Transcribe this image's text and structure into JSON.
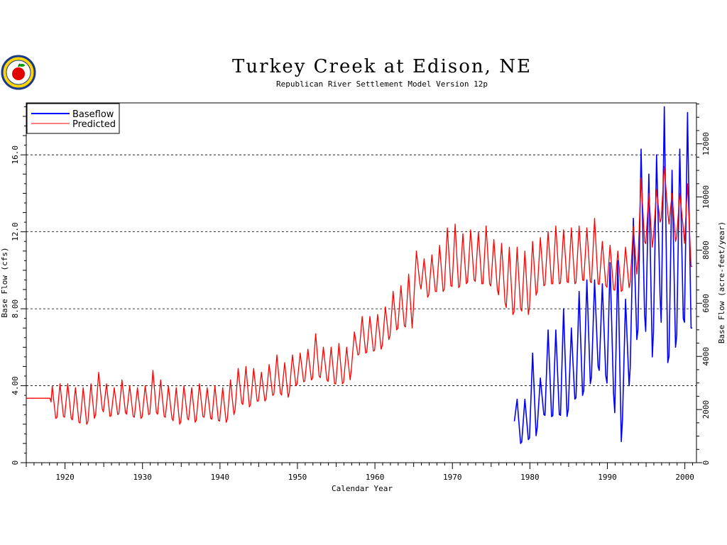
{
  "chart_data": {
    "type": "line",
    "title": "Turkey Creek at Edison, NE",
    "subtitle": "Republican River Settlement Model Version 12p",
    "xlabel": "Calendar Year",
    "ylabel": "Base Flow (cfs)",
    "ylabel_right": "Base Flow (acre-feet/year)",
    "xlim": [
      1915,
      2001.5
    ],
    "ylim": [
      0,
      18.7
    ],
    "ylim_right": [
      0,
      13540
    ],
    "xticks": [
      1920,
      1930,
      1940,
      1950,
      1960,
      1970,
      1980,
      1990,
      2000
    ],
    "yticks": [
      0,
      4,
      8,
      12,
      16
    ],
    "ytick_labels": [
      "0",
      "4.00",
      "8.00",
      "12.0",
      "16.0"
    ],
    "yticks_right": [
      0,
      2000,
      4000,
      6000,
      8000,
      10000,
      12000
    ],
    "grid_y": [
      4,
      8,
      12,
      16
    ],
    "legend_position": "top-left",
    "series": [
      {
        "name": "Baseflow",
        "color": "#0000ff",
        "x_start": 1978.0,
        "annual": [
          [
            1978,
            3.3,
            1.0
          ],
          [
            1979,
            3.3,
            1.2
          ],
          [
            1980,
            5.7,
            1.4
          ],
          [
            1981,
            4.4,
            2.5
          ],
          [
            1982,
            6.9,
            2.4
          ],
          [
            1983,
            6.9,
            2.5
          ],
          [
            1984,
            8.0,
            2.4
          ],
          [
            1985,
            7.0,
            3.3
          ],
          [
            1986,
            8.9,
            3.5
          ],
          [
            1987,
            9.5,
            4.1
          ],
          [
            1988,
            9.5,
            5.0
          ],
          [
            1989,
            9.3,
            4.5
          ],
          [
            1990,
            10.4,
            3.6
          ],
          [
            1991,
            10.5,
            1.1
          ],
          [
            1992,
            8.5,
            4.0
          ],
          [
            1993,
            12.7,
            6.4
          ],
          [
            1994,
            16.3,
            7.7
          ],
          [
            1995,
            15.0,
            5.5
          ],
          [
            1996,
            16.0,
            8.7
          ],
          [
            1997,
            18.5,
            5.2
          ],
          [
            1998,
            15.2,
            6.0
          ],
          [
            1999,
            16.3,
            7.5
          ],
          [
            2000,
            18.2,
            7.0
          ]
        ]
      },
      {
        "name": "Predicted",
        "color": "#ff0000",
        "x_start": 1918.2,
        "pre_value": 3.35,
        "annual": [
          [
            1918,
            4.0,
            2.3
          ],
          [
            1919,
            4.1,
            2.4
          ],
          [
            1920,
            4.1,
            2.3
          ],
          [
            1921,
            3.9,
            2.1
          ],
          [
            1922,
            3.9,
            2.0
          ],
          [
            1923,
            4.1,
            2.3
          ],
          [
            1924,
            4.7,
            2.8
          ],
          [
            1925,
            4.1,
            2.4
          ],
          [
            1926,
            3.9,
            2.5
          ],
          [
            1927,
            4.3,
            2.6
          ],
          [
            1928,
            4.0,
            2.4
          ],
          [
            1929,
            3.9,
            2.3
          ],
          [
            1930,
            4.0,
            2.5
          ],
          [
            1931,
            4.8,
            2.6
          ],
          [
            1932,
            4.3,
            2.4
          ],
          [
            1933,
            4.0,
            2.3
          ],
          [
            1934,
            3.9,
            2.0
          ],
          [
            1935,
            4.0,
            2.3
          ],
          [
            1936,
            3.9,
            2.1
          ],
          [
            1937,
            4.1,
            2.4
          ],
          [
            1938,
            3.9,
            2.3
          ],
          [
            1939,
            4.0,
            2.2
          ],
          [
            1940,
            3.9,
            2.1
          ],
          [
            1941,
            4.3,
            2.5
          ],
          [
            1942,
            4.9,
            3.1
          ],
          [
            1943,
            5.0,
            2.9
          ],
          [
            1944,
            4.9,
            3.2
          ],
          [
            1945,
            4.7,
            3.2
          ],
          [
            1946,
            5.1,
            3.5
          ],
          [
            1947,
            5.6,
            3.6
          ],
          [
            1948,
            5.2,
            3.4
          ],
          [
            1949,
            5.6,
            4.0
          ],
          [
            1950,
            5.7,
            4.2
          ],
          [
            1951,
            5.9,
            4.3
          ],
          [
            1952,
            6.7,
            4.5
          ],
          [
            1953,
            6.0,
            4.3
          ],
          [
            1954,
            6.0,
            4.1
          ],
          [
            1955,
            6.2,
            4.1
          ],
          [
            1956,
            6.0,
            4.3
          ],
          [
            1957,
            6.8,
            5.6
          ],
          [
            1958,
            7.6,
            5.7
          ],
          [
            1959,
            7.6,
            5.8
          ],
          [
            1960,
            7.7,
            5.9
          ],
          [
            1961,
            8.1,
            6.4
          ],
          [
            1962,
            8.9,
            6.9
          ],
          [
            1963,
            9.2,
            7.1
          ],
          [
            1964,
            9.8,
            7.0
          ],
          [
            1965,
            11.0,
            9.3
          ],
          [
            1966,
            10.6,
            8.6
          ],
          [
            1967,
            10.8,
            8.9
          ],
          [
            1968,
            11.3,
            8.9
          ],
          [
            1969,
            12.2,
            9.2
          ],
          [
            1970,
            12.4,
            9.1
          ],
          [
            1971,
            11.9,
            9.3
          ],
          [
            1972,
            12.1,
            9.5
          ],
          [
            1973,
            12.0,
            9.3
          ],
          [
            1974,
            12.3,
            9.3
          ],
          [
            1975,
            11.6,
            9.0
          ],
          [
            1976,
            11.4,
            8.3
          ],
          [
            1977,
            11.2,
            7.7
          ],
          [
            1978,
            11.2,
            8.0
          ],
          [
            1979,
            11.0,
            7.7
          ],
          [
            1980,
            11.5,
            8.7
          ],
          [
            1981,
            11.7,
            9.2
          ],
          [
            1982,
            12.0,
            9.3
          ],
          [
            1983,
            12.3,
            9.3
          ],
          [
            1984,
            12.1,
            9.4
          ],
          [
            1985,
            12.2,
            9.3
          ],
          [
            1986,
            12.3,
            9.5
          ],
          [
            1987,
            12.2,
            9.4
          ],
          [
            1988,
            12.7,
            9.3
          ],
          [
            1989,
            11.5,
            9.2
          ],
          [
            1990,
            11.3,
            9.0
          ],
          [
            1991,
            11.0,
            8.9
          ],
          [
            1992,
            11.2,
            9.1
          ],
          [
            1993,
            12.3,
            9.8
          ],
          [
            1994,
            14.8,
            11.5
          ],
          [
            1995,
            14.0,
            11.2
          ],
          [
            1996,
            14.2,
            12.5
          ],
          [
            1997,
            15.4,
            13.0
          ],
          [
            1998,
            14.0,
            11.5
          ],
          [
            1999,
            14.0,
            12.2
          ],
          [
            2000,
            14.5,
            10.2
          ]
        ]
      }
    ]
  }
}
